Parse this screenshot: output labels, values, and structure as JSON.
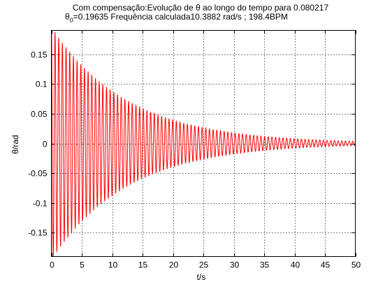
{
  "chart_data": {
    "type": "line",
    "title_line1": "Com compensação:Evolução de θ ao longo do tempo para 0.080217",
    "title_line2_prefix": "θ",
    "title_line2_sub": "0",
    "title_line2_rest": "=0.19635     Frequência calculada10.3882 rad/s ; 198.4BPM",
    "xlabel": "t/s",
    "ylabel": "θ/rad",
    "xlim": [
      0,
      50
    ],
    "ylim": [
      -0.19,
      0.19
    ],
    "xticks": [
      0,
      5,
      10,
      15,
      20,
      25,
      30,
      35,
      40,
      45,
      50
    ],
    "yticks": [
      -0.15,
      -0.1,
      -0.05,
      0,
      0.05,
      0.1,
      0.15
    ],
    "ytick_labels": [
      "-0.15",
      "-0.1",
      "-0.05",
      "0",
      "0.05",
      "0.1",
      "0.15"
    ],
    "grid": true,
    "series": [
      {
        "color": "#ff0000",
        "amplitude_initial": 0.19635,
        "omega": 10.3882,
        "decay_rate": 0.08,
        "t_start": 0,
        "t_end": 50,
        "samples_per_second": 40,
        "envelope_points": [
          {
            "t": 1,
            "y": 0.18
          },
          {
            "t": 5,
            "y": 0.12
          },
          {
            "t": 10,
            "y": 0.08
          },
          {
            "t": 20,
            "y": 0.035
          },
          {
            "t": 30,
            "y": 0.015
          },
          {
            "t": 40,
            "y": 0.005
          },
          {
            "t": 50,
            "y": 0.002
          }
        ]
      }
    ]
  }
}
